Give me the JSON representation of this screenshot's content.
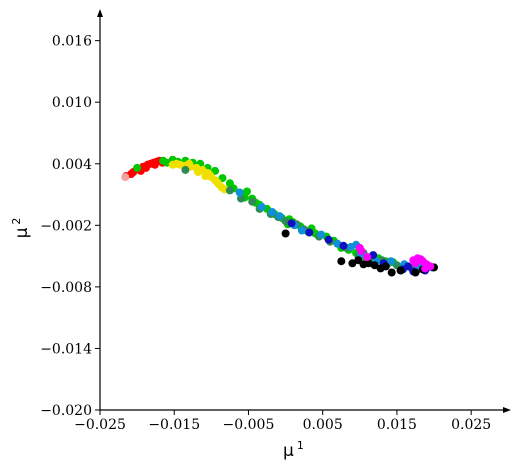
{
  "chart_data": {
    "type": "scatter",
    "title": "",
    "xlabel": "μ",
    "xlabel_sup": "1",
    "ylabel": "μ",
    "ylabel_sup": "2",
    "xlim": [
      -0.025,
      0.027
    ],
    "ylim": [
      -0.02,
      0.0185
    ],
    "xticks": [
      -0.025,
      -0.015,
      -0.005,
      0.005,
      0.015,
      0.025
    ],
    "xtick_labels": [
      "−0.025",
      "−0.015",
      "−0.005",
      "0.005",
      "0.015",
      "0.025"
    ],
    "yticks": [
      -0.02,
      -0.014,
      -0.008,
      -0.002,
      0.004,
      0.01,
      0.016
    ],
    "ytick_labels": [
      "−0.020",
      "−0.014",
      "−0.008",
      "−0.002",
      "0.004",
      "0.010",
      "0.016"
    ],
    "grid": false,
    "legend": "none",
    "series": [
      {
        "color": "#ff0000",
        "points": [
          [
            -0.0215,
            0.0028
          ],
          [
            -0.0205,
            0.0032
          ],
          [
            -0.0198,
            0.0035
          ],
          [
            -0.0192,
            0.0037
          ],
          [
            -0.0186,
            0.0039
          ],
          [
            -0.0182,
            0.004
          ],
          [
            -0.0178,
            0.0041
          ],
          [
            -0.0174,
            0.0042
          ],
          [
            -0.0208,
            0.003
          ],
          [
            -0.0195,
            0.0033
          ],
          [
            -0.0188,
            0.0036
          ],
          [
            -0.0176,
            0.0039
          ],
          [
            -0.017,
            0.0043
          ],
          [
            -0.0166,
            0.0041
          ]
        ]
      },
      {
        "color": "#00c800",
        "points": [
          [
            -0.02,
            0.0036
          ],
          [
            -0.0165,
            0.0043
          ],
          [
            -0.016,
            0.0041
          ],
          [
            -0.0152,
            0.0044
          ],
          [
            -0.0145,
            0.0042
          ],
          [
            -0.0135,
            0.0043
          ],
          [
            -0.0125,
            0.0041
          ],
          [
            -0.0115,
            0.004
          ],
          [
            -0.0105,
            0.0036
          ],
          [
            -0.0095,
            0.0033
          ],
          [
            -0.0085,
            0.0026
          ],
          [
            -0.0075,
            0.0021
          ],
          [
            -0.007,
            0.0016
          ],
          [
            -0.006,
            0.0011
          ],
          [
            -0.0055,
            0.0007
          ],
          [
            -0.0045,
            0.0006
          ],
          [
            -0.004,
            0.0002
          ],
          [
            -0.0035,
            0.0
          ],
          [
            -0.0025,
            -0.0004
          ],
          [
            -0.0015,
            -0.0009
          ],
          [
            -0.0005,
            -0.0013
          ],
          [
            0.0005,
            -0.0014
          ],
          [
            0.001,
            -0.0017
          ],
          [
            0.002,
            -0.0021
          ],
          [
            0.003,
            -0.0026
          ],
          [
            0.004,
            -0.0028
          ],
          [
            0.0055,
            -0.0031
          ],
          [
            0.0065,
            -0.0035
          ],
          [
            0.0075,
            -0.0042
          ],
          [
            0.0085,
            -0.0044
          ],
          [
            0.0095,
            -0.0047
          ],
          [
            0.0105,
            -0.005
          ],
          [
            0.0115,
            -0.0051
          ],
          [
            0.0125,
            -0.0052
          ],
          [
            0.0135,
            -0.0055
          ],
          [
            0.0145,
            -0.0056
          ],
          [
            0.0003,
            -0.0019
          ],
          [
            0.0035,
            -0.0023
          ],
          [
            -0.0052,
            0.0013
          ]
        ]
      },
      {
        "color": "#f0e000",
        "points": [
          [
            -0.0152,
            0.0039
          ],
          [
            -0.0147,
            0.004
          ],
          [
            -0.0142,
            0.0039
          ],
          [
            -0.0135,
            0.0038
          ],
          [
            -0.0128,
            0.0037
          ],
          [
            -0.012,
            0.0036
          ],
          [
            -0.0112,
            0.0034
          ],
          [
            -0.0105,
            0.0031
          ],
          [
            -0.01,
            0.0027
          ],
          [
            -0.0095,
            0.0024
          ],
          [
            -0.009,
            0.002
          ],
          [
            -0.0086,
            0.0017
          ],
          [
            -0.0082,
            0.0015
          ],
          [
            -0.0118,
            0.0032
          ],
          [
            -0.0102,
            0.0029
          ],
          [
            -0.0092,
            0.0022
          ],
          [
            -0.013,
            0.004
          ],
          [
            -0.0108,
            0.0028
          ]
        ]
      },
      {
        "color": "#2e8b57",
        "points": [
          [
            -0.0135,
            0.0034
          ],
          [
            -0.0075,
            0.0014
          ],
          [
            -0.006,
            0.0006
          ],
          [
            -0.0045,
            0.0003
          ],
          [
            -0.0035,
            -0.0004
          ],
          [
            -0.002,
            -0.0009
          ],
          [
            -0.001,
            -0.0012
          ],
          [
            0.0,
            -0.0016
          ],
          [
            0.0015,
            -0.0019
          ],
          [
            0.0025,
            -0.0024
          ],
          [
            0.0045,
            -0.0031
          ],
          [
            0.006,
            -0.0036
          ],
          [
            0.0082,
            -0.0042
          ],
          [
            0.0098,
            -0.005
          ],
          [
            0.0112,
            -0.0053
          ],
          [
            0.013,
            -0.0054
          ],
          [
            0.015,
            -0.0059
          ],
          [
            0.017,
            -0.0062
          ],
          [
            0.0105,
            -0.0047
          ],
          [
            0.0138,
            -0.0057
          ]
        ]
      },
      {
        "color": "#1090d8",
        "points": [
          [
            -0.0062,
            0.0012
          ],
          [
            -0.0032,
            -0.0002
          ],
          [
            -0.0018,
            -0.0007
          ],
          [
            -0.0008,
            -0.0011
          ],
          [
            0.0012,
            -0.002
          ],
          [
            0.0022,
            -0.0025
          ],
          [
            0.0048,
            -0.0029
          ],
          [
            0.007,
            -0.0038
          ],
          [
            0.0088,
            -0.0041
          ],
          [
            0.0102,
            -0.0048
          ],
          [
            0.0122,
            -0.0055
          ],
          [
            0.0142,
            -0.0055
          ],
          [
            0.016,
            -0.0058
          ],
          [
            0.0182,
            -0.0058
          ],
          [
            0.0192,
            -0.0061
          ],
          [
            0.0178,
            -0.0063
          ],
          [
            0.0095,
            -0.0039
          ]
        ]
      },
      {
        "color": "#1010c0",
        "points": [
          [
            0.0008,
            -0.0018
          ],
          [
            0.0032,
            -0.0027
          ],
          [
            0.0058,
            -0.0034
          ],
          [
            0.0078,
            -0.004
          ],
          [
            0.0132,
            -0.0057
          ],
          [
            0.0158,
            -0.0063
          ],
          [
            0.0172,
            -0.0065
          ],
          [
            0.0188,
            -0.0064
          ],
          [
            0.0198,
            -0.0061
          ],
          [
            0.0118,
            -0.0049
          ],
          [
            0.0165,
            -0.006
          ]
        ]
      },
      {
        "color": "#000000",
        "points": [
          [
            0.0,
            -0.0028
          ],
          [
            0.0075,
            -0.0055
          ],
          [
            0.009,
            -0.0057
          ],
          [
            0.0105,
            -0.0058
          ],
          [
            0.012,
            -0.0059
          ],
          [
            0.0143,
            -0.0066
          ],
          [
            0.0128,
            -0.0062
          ],
          [
            0.0155,
            -0.0064
          ],
          [
            0.0175,
            -0.0066
          ],
          [
            0.0185,
            -0.0063
          ],
          [
            0.02,
            -0.0061
          ],
          [
            0.0098,
            -0.0054
          ],
          [
            0.0112,
            -0.0057
          ],
          [
            0.0135,
            -0.006
          ]
        ]
      },
      {
        "color": "#ff00ff",
        "points": [
          [
            0.01,
            -0.0042
          ],
          [
            0.0102,
            -0.0045
          ],
          [
            0.011,
            -0.0051
          ],
          [
            0.0172,
            -0.0054
          ],
          [
            0.0178,
            -0.0052
          ],
          [
            0.0185,
            -0.0055
          ],
          [
            0.019,
            -0.0058
          ],
          [
            0.0195,
            -0.006
          ],
          [
            0.0188,
            -0.0062
          ],
          [
            0.0175,
            -0.0057
          ],
          [
            0.0182,
            -0.0053
          ]
        ]
      },
      {
        "color": "#f4a0a0",
        "points": [
          [
            -0.0216,
            0.0027
          ]
        ]
      }
    ]
  }
}
